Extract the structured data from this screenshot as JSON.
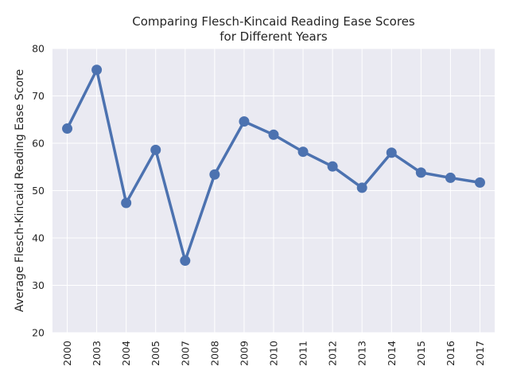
{
  "chart_data": {
    "type": "line",
    "title_lines": [
      "Comparing Flesch-Kincaid Reading Ease Scores",
      "for Different Years"
    ],
    "xlabel": "",
    "ylabel": "Average Flesch-Kincaid Reading Ease Score",
    "categories": [
      "2000",
      "2003",
      "2004",
      "2005",
      "2007",
      "2008",
      "2009",
      "2010",
      "2011",
      "2012",
      "2013",
      "2014",
      "2015",
      "2016",
      "2017"
    ],
    "series": [
      {
        "values": [
          63.1,
          75.5,
          47.4,
          58.6,
          35.2,
          53.4,
          64.6,
          61.8,
          58.2,
          55.1,
          50.6,
          58.0,
          53.8,
          52.7,
          51.7
        ]
      }
    ],
    "ylim": [
      20,
      80
    ],
    "yticks": [
      20,
      30,
      40,
      50,
      60,
      70,
      80
    ],
    "grid": true,
    "legend": "none",
    "colors": {
      "background": "#EAEAF2",
      "grid": "#ffffff",
      "line": "#4C72B0"
    }
  }
}
